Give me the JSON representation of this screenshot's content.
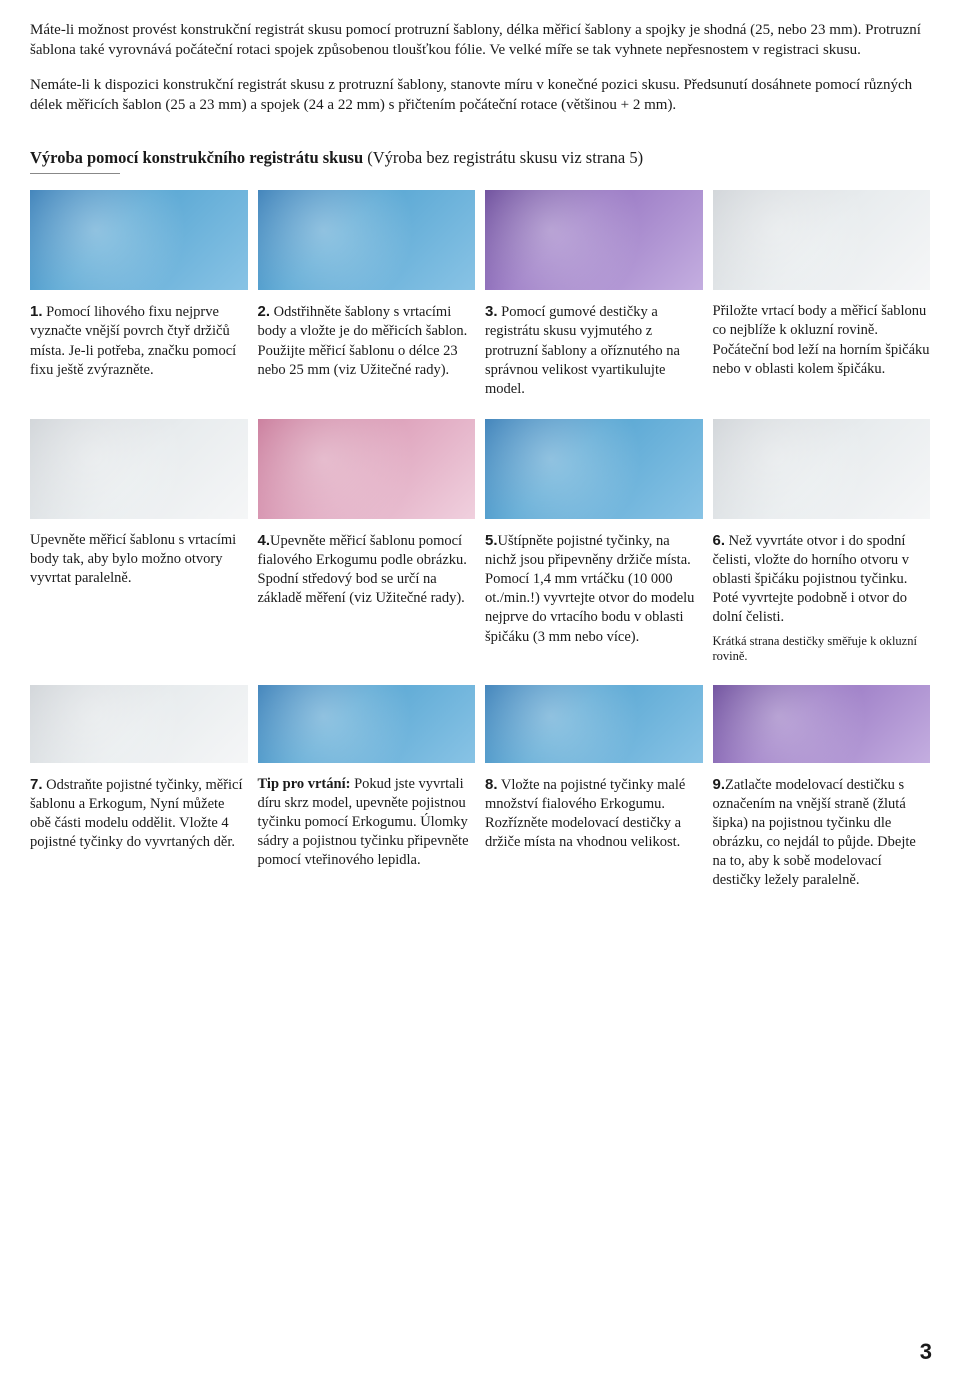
{
  "intro": {
    "p1": "Máte-li možnost provést konstrukční registrát skusu pomocí protruzní šablony, délka měřicí šablony a spojky je shodná (25, nebo 23 mm). Protruzní šablona také vyrovnává počáteční rotaci spojek způsobenou tloušťkou fólie. Ve velké míře se tak vyhnete nepřesnostem v registraci skusu.",
    "p2": "Nemáte-li k dispozici konstrukční registrát skusu z protruzní šablony, stanovte míru v konečné pozici skusu. Předsunutí dosáhnete pomocí různých délek měřicích šablon (25 a 23 mm) a spojek (24 a 22 mm) s přičtením počáteční rotace (většinou + 2 mm)."
  },
  "section_heading_bold": "Výroba pomocí konstrukčního registrátu skusu",
  "section_heading_rest": " (Výroba bez registrátu skusu viz strana 5)",
  "row1": {
    "c1": {
      "num": "1.",
      "text": " Pomocí lihového fixu nejprve vyznačte vnější povrch čtyř držičů místa. Je-li potřeba, značku pomocí fixu ještě zvýrazněte."
    },
    "c2": {
      "num": "2.",
      "text": " Odstřihněte šablony s vrtacími body a vložte je do měřicích šablon. Použijte měřicí šablonu o délce 23 nebo 25 mm (viz Užitečné rady)."
    },
    "c3": {
      "num": "3.",
      "text": " Pomocí gumové destičky a registrátu skusu vyjmutého z protruzní šablony a oříznutého na správnou velikost vyartikulujte model."
    },
    "c4": {
      "text": "Přiložte vrtací body a měřicí šablonu co nejblíže k okluzní rovině. Počáteční bod leží na horním špičáku nebo v oblasti kolem špičáku."
    }
  },
  "row2": {
    "c1": {
      "text": "Upevněte měřicí šablonu s vrtacími body tak, aby bylo možno otvory vyvrtat paralelně."
    },
    "c2": {
      "num": "4.",
      "text": "Upevněte měřicí šablonu pomocí fialového Erkogumu podle obrázku. Spodní středový bod se určí na základě měření (viz Užitečné rady)."
    },
    "c3": {
      "num": "5.",
      "text": "Uštípněte pojistné tyčinky, na nichž jsou připevněny držiče místa. Pomocí 1,4 mm vrtáčku (10 000 ot./min.!) vyvrtejte otvor do modelu nejprve do vrtacího bodu v oblasti špičáku (3 mm nebo více)."
    },
    "c4": {
      "num": "6.",
      "text": " Než vyvrtáte otvor i do spodní čelisti, vložte do horního otvoru v oblasti špičáku pojistnou tyčinku. Poté vyvrtejte podobně i otvor do dolní čelisti.",
      "note": "Krátká strana destičky směřuje k okluzní rovině."
    }
  },
  "row3": {
    "c1": {
      "num": "7.",
      "text": " Odstraňte pojistné tyčinky, měřicí šablonu a Erkogum, Nyní můžete obě části modelu oddělit. Vložte 4 pojistné tyčinky do vyvrtaných děr."
    },
    "c2": {
      "bold": "Tip pro vrtání:",
      "text": " Pokud jste vyvrtali díru skrz model, upevněte pojistnou tyčinku pomocí Erkogumu. Úlomky sádry a pojistnou tyčinku připevněte pomocí vteřinového lepidla."
    },
    "c3": {
      "num": "8.",
      "text": " Vložte na pojistné tyčinky malé množství fialového Erkogumu. Rozřízněte modelovací destičky a držiče místa na vhodnou velikost."
    },
    "c4": {
      "num": "9.",
      "text": "Zatlačte modelovací destičku s označením na vnější straně (žlutá šipka) na pojistnou tyčinku dle obrázku, co nejdál to půjde. Dbejte na to, aby k sobě modelovací destičky ležely paralelně."
    }
  },
  "page_number": "3"
}
